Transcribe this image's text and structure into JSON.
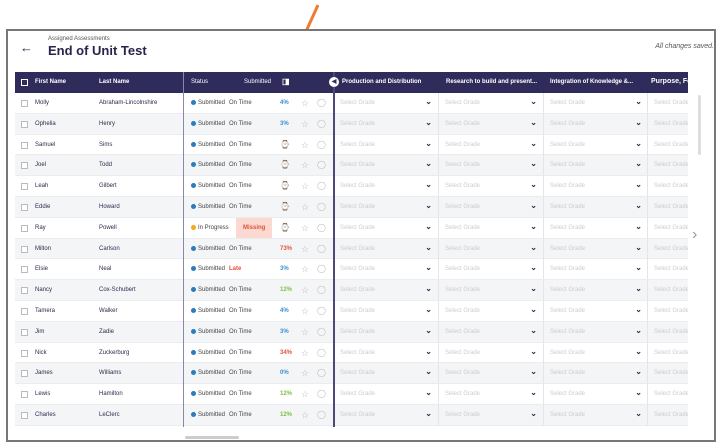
{
  "header": {
    "breadcrumb": "Assigned Assessments",
    "title": "End of Unit Test",
    "save_status": "All changes saved."
  },
  "columns": {
    "first": "First Name",
    "last": "Last Name",
    "status": "Status",
    "submitted": "Submitted",
    "grades": [
      "Production and Distribution",
      "Research to build and present...",
      "Integration of Knowledge &...",
      "Purpose, Fo"
    ]
  },
  "grade_placeholder": "Select Grade",
  "colors": {
    "header": "#2f2c5c",
    "submitted": "#2c7bc0",
    "in_progress": "#f5a623",
    "red": "#e0533a",
    "green": "#7cc242",
    "blue": "#3a8fd0",
    "annotation_arrow": "#ee7d31"
  },
  "rows": [
    {
      "first": "Molly",
      "last": "Abraham-Lincolnshire",
      "status": "Submitted",
      "timing": "On Time",
      "score": "4%",
      "score_color": "blue"
    },
    {
      "first": "Ophelia",
      "last": "Henry",
      "status": "Submitted",
      "timing": "On Time",
      "score": "3%",
      "score_color": "blue"
    },
    {
      "first": "Samuel",
      "last": "Sims",
      "status": "Submitted",
      "timing": "On Time",
      "score": null
    },
    {
      "first": "Joel",
      "last": "Todd",
      "status": "Submitted",
      "timing": "On Time",
      "score": null
    },
    {
      "first": "Leah",
      "last": "Gilbert",
      "status": "Submitted",
      "timing": "On Time",
      "score": null
    },
    {
      "first": "Eddie",
      "last": "Howard",
      "status": "Submitted",
      "timing": "On Time",
      "score": null
    },
    {
      "first": "Ray",
      "last": "Powell",
      "status": "In Progress",
      "timing": "Missing",
      "score": null
    },
    {
      "first": "Milton",
      "last": "Carlson",
      "status": "Submitted",
      "timing": "On Time",
      "score": "73%",
      "score_color": "red"
    },
    {
      "first": "Elsie",
      "last": "Neal",
      "status": "Submitted",
      "timing": "Late",
      "score": "3%",
      "score_color": "blue"
    },
    {
      "first": "Nancy",
      "last": "Cox-Schubert",
      "status": "Submitted",
      "timing": "On Time",
      "score": "12%",
      "score_color": "green"
    },
    {
      "first": "Tamera",
      "last": "Walker",
      "status": "Submitted",
      "timing": "On Time",
      "score": "4%",
      "score_color": "blue"
    },
    {
      "first": "Jim",
      "last": "Zadie",
      "status": "Submitted",
      "timing": "On Time",
      "score": "3%",
      "score_color": "blue"
    },
    {
      "first": "Nick",
      "last": "Zuckerburg",
      "status": "Submitted",
      "timing": "On Time",
      "score": "34%",
      "score_color": "red"
    },
    {
      "first": "James",
      "last": "Williams",
      "status": "Submitted",
      "timing": "On Time",
      "score": "0%",
      "score_color": "blue"
    },
    {
      "first": "Lewis",
      "last": "Hamilton",
      "status": "Submitted",
      "timing": "On Time",
      "score": "12%",
      "score_color": "green"
    },
    {
      "first": "Charles",
      "last": "LeClerc",
      "status": "Submitted",
      "timing": "On Time",
      "score": "12%",
      "score_color": "green"
    }
  ]
}
